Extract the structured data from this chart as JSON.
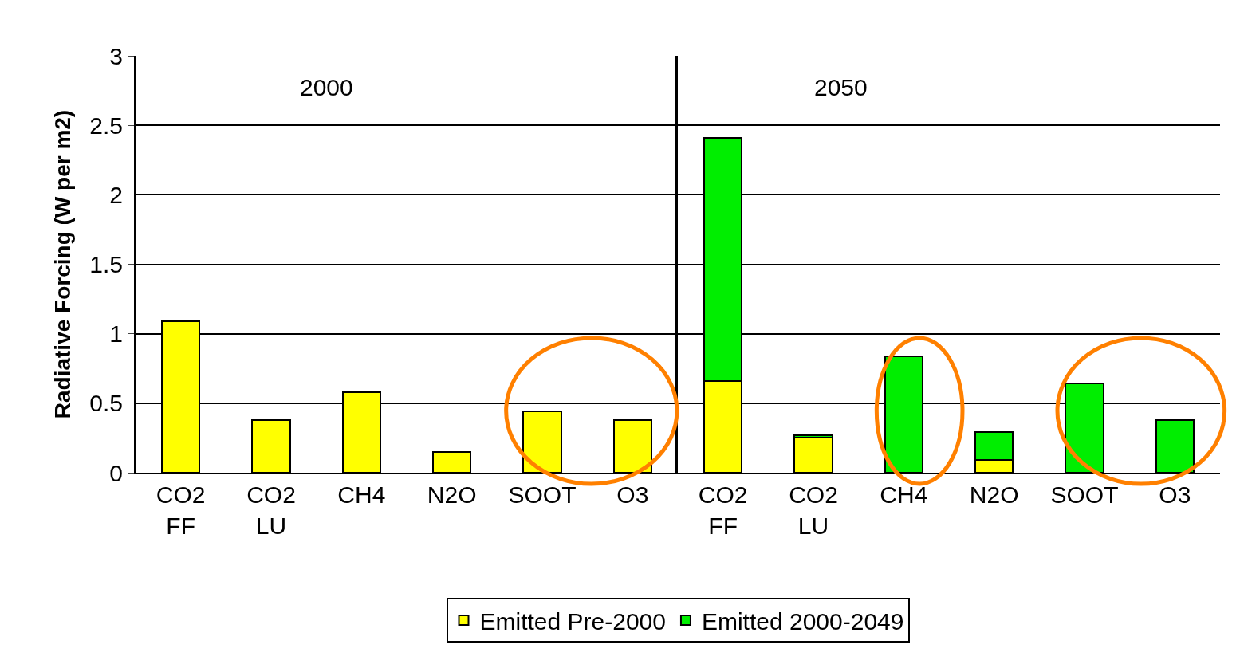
{
  "chart_data": [
    {
      "type": "bar",
      "stacked": true,
      "ylabel": "Radiative Forcing (W per m2)",
      "categories": [
        "CO2\nFF",
        "CO2\nLU",
        "CH4",
        "N2O",
        "SOOT",
        "O3"
      ],
      "series": [
        {
          "name": "Emitted Pre-2000",
          "color": "#ffff00",
          "values": [
            1.09,
            0.38,
            0.58,
            0.15,
            0.44,
            0.38
          ]
        },
        {
          "name": "Emitted 2000-2049",
          "color": "#00ee00",
          "values": [
            null,
            null,
            null,
            null,
            null,
            null
          ]
        }
      ],
      "ylim": [
        0,
        3
      ],
      "yticks": [
        0,
        0.5,
        1,
        1.5,
        2,
        2.5,
        3
      ],
      "grid": "y",
      "legend": "bottom",
      "annotations": [
        "2000"
      ]
    },
    {
      "type": "bar",
      "stacked": true,
      "categories": [
        "CO2\nFF",
        "CO2\nLU",
        "CH4",
        "N2O",
        "SOOT",
        "O3"
      ],
      "series": [
        {
          "color": "#ffff00",
          "values": [
            0.66,
            0.25,
            null,
            0.09,
            null,
            null
          ]
        },
        {
          "color": "#00ee00",
          "values": [
            1.75,
            0.02,
            0.84,
            0.2,
            0.64,
            0.38
          ]
        }
      ],
      "ylim": [
        0,
        3
      ],
      "yticks": [
        0,
        0.5,
        1,
        1.5,
        2,
        2.5,
        3
      ],
      "grid": "y",
      "tick_labels": "x",
      "annotations": [
        "2050"
      ]
    }
  ]
}
